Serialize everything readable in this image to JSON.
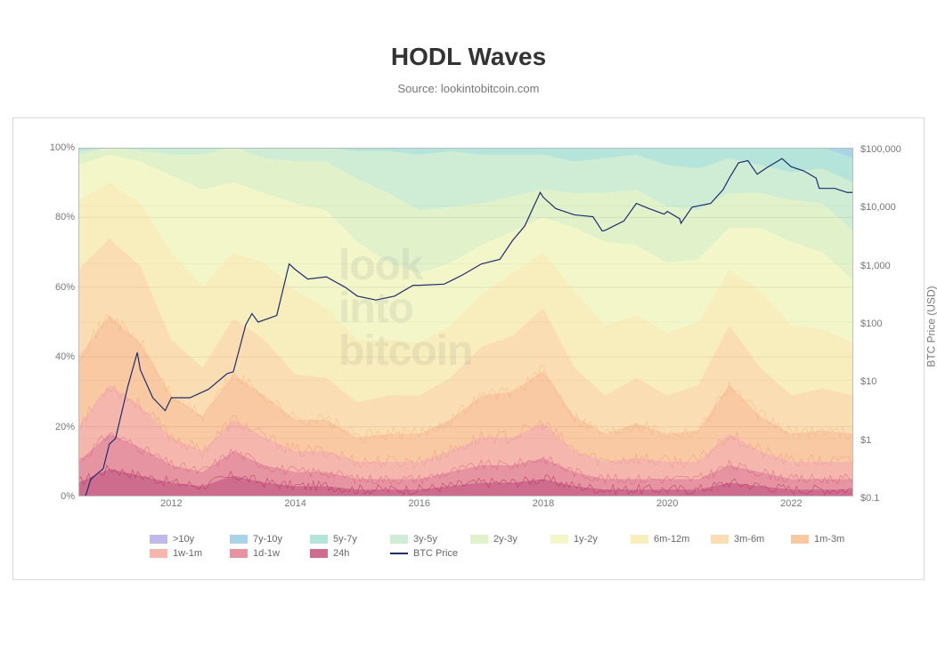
{
  "title": "HODL Waves",
  "subtitle": "Source: lookintobitcoin.com",
  "watermark_lines": [
    "look",
    "into",
    "bitcoin"
  ],
  "watermark_color": "rgba(120,120,120,0.12)",
  "watermark_fontsize": 48,
  "chart": {
    "type": "stacked-area-with-line",
    "background_color": "#ffffff",
    "grid_color": "#d8d8d8",
    "x_axis": {
      "min_year": 2010.5,
      "max_year": 2023.0,
      "ticks": [
        2012,
        2014,
        2016,
        2018,
        2020,
        2022
      ],
      "label_fontsize": 11,
      "label_color": "#777777"
    },
    "y_left": {
      "title": "",
      "min": 0,
      "max": 100,
      "ticks": [
        0,
        20,
        40,
        60,
        80,
        100
      ],
      "suffix": "%",
      "label_fontsize": 11,
      "label_color": "#777777"
    },
    "y_right": {
      "title": "BTC Price (USD)",
      "scale": "log",
      "ticks": [
        0.1,
        1,
        10,
        100,
        1000,
        10000,
        100000
      ],
      "tick_labels": [
        "$0.1",
        "$1",
        "$10",
        "$100",
        "$1,000",
        "$10,000",
        "$100,000"
      ],
      "label_fontsize": 11,
      "label_color": "#777777",
      "title_fontsize": 12
    },
    "samples_x": [
      2010.5,
      2011.0,
      2011.5,
      2012.0,
      2012.5,
      2013.0,
      2013.5,
      2014.0,
      2014.5,
      2015.0,
      2015.5,
      2016.0,
      2016.5,
      2017.0,
      2017.5,
      2018.0,
      2018.5,
      2019.0,
      2019.5,
      2020.0,
      2020.5,
      2021.0,
      2021.5,
      2022.0,
      2022.5,
      2023.0
    ],
    "layers": [
      {
        "id": "24h",
        "label": "24h",
        "color": "#b82e5c",
        "opacity": 0.7,
        "base_pct": [
          4,
          8,
          6,
          4,
          3,
          6,
          4,
          3,
          3,
          2,
          2,
          2,
          3,
          4,
          4,
          5,
          3,
          2,
          2,
          2,
          2,
          4,
          3,
          2,
          2,
          2
        ]
      },
      {
        "id": "1d-1w",
        "label": "1d-1w",
        "color": "#d85a6e",
        "opacity": 0.65,
        "base_pct": [
          6,
          10,
          8,
          5,
          4,
          7,
          5,
          4,
          4,
          3,
          3,
          3,
          4,
          5,
          5,
          6,
          4,
          3,
          3,
          3,
          3,
          5,
          4,
          3,
          3,
          3
        ]
      },
      {
        "id": "1w-1m",
        "label": "1w-1m",
        "color": "#ef8a7a",
        "opacity": 0.62,
        "base_pct": [
          10,
          14,
          12,
          8,
          6,
          9,
          8,
          6,
          6,
          5,
          5,
          5,
          6,
          8,
          8,
          10,
          6,
          5,
          6,
          5,
          5,
          9,
          6,
          5,
          5,
          5
        ]
      },
      {
        "id": "1m-3m",
        "label": "1m-3m",
        "color": "#f4a86a",
        "opacity": 0.62,
        "base_pct": [
          20,
          20,
          18,
          12,
          10,
          13,
          12,
          9,
          9,
          7,
          8,
          8,
          9,
          12,
          13,
          15,
          10,
          8,
          10,
          8,
          9,
          14,
          10,
          8,
          9,
          8
        ]
      },
      {
        "id": "3m-6m",
        "label": "3m-6m",
        "color": "#f6c77f",
        "opacity": 0.6,
        "base_pct": [
          25,
          22,
          22,
          16,
          14,
          16,
          16,
          13,
          12,
          10,
          11,
          11,
          12,
          14,
          16,
          18,
          14,
          11,
          13,
          11,
          13,
          17,
          14,
          11,
          12,
          11
        ]
      },
      {
        "id": "6m-12m",
        "label": "6m-12m",
        "color": "#f3e08e",
        "opacity": 0.58,
        "base_pct": [
          20,
          16,
          18,
          25,
          23,
          19,
          22,
          24,
          20,
          18,
          16,
          15,
          15,
          15,
          18,
          16,
          22,
          20,
          18,
          18,
          18,
          16,
          22,
          20,
          17,
          15
        ]
      },
      {
        "id": "1y-2y",
        "label": "1y-2y",
        "color": "#e8ee9d",
        "opacity": 0.55,
        "base_pct": [
          10,
          8,
          12,
          22,
          28,
          20,
          20,
          25,
          28,
          28,
          22,
          20,
          18,
          14,
          12,
          10,
          18,
          24,
          20,
          20,
          18,
          12,
          18,
          24,
          22,
          18
        ]
      },
      {
        "id": "2y-3y",
        "label": "2y-3y",
        "color": "#c9e8a0",
        "opacity": 0.55,
        "base_pct": [
          3,
          2,
          3,
          6,
          10,
          10,
          10,
          12,
          14,
          18,
          20,
          18,
          16,
          12,
          10,
          8,
          10,
          14,
          16,
          16,
          14,
          10,
          10,
          12,
          14,
          14
        ]
      },
      {
        "id": "3y-5y",
        "label": "3y-5y",
        "color": "#a7dfb0",
        "opacity": 0.55,
        "base_pct": [
          1,
          0,
          1,
          2,
          2,
          0,
          3,
          4,
          4,
          8,
          12,
          16,
          16,
          14,
          12,
          10,
          9,
          10,
          10,
          12,
          12,
          10,
          8,
          8,
          10,
          14
        ]
      },
      {
        "id": "5y-7y",
        "label": "5y-7y",
        "color": "#7fd0c0",
        "opacity": 0.58,
        "base_pct": [
          1,
          0,
          0,
          0,
          0,
          0,
          0,
          0,
          0,
          1,
          1,
          2,
          1,
          2,
          2,
          2,
          4,
          3,
          2,
          5,
          6,
          3,
          5,
          7,
          6,
          7
        ]
      },
      {
        "id": "7y-10y",
        "label": "7y-10y",
        "color": "#6fb8d8",
        "opacity": 0.6,
        "base_pct": [
          0,
          0,
          0,
          0,
          0,
          0,
          0,
          0,
          0,
          0,
          0,
          0,
          0,
          0,
          0,
          0,
          0,
          0,
          0,
          0,
          0,
          0,
          0,
          0,
          0,
          3
        ]
      },
      {
        "id": "gt10y",
        "label": ">10y",
        "color": "#9a8cd8",
        "opacity": 0.62,
        "base_pct": [
          0,
          0,
          0,
          0,
          0,
          0,
          0,
          0,
          0,
          0,
          0,
          0,
          0,
          0,
          0,
          0,
          0,
          0,
          0,
          0,
          0,
          0,
          0,
          0,
          0,
          0
        ]
      }
    ],
    "btc_price": {
      "label": "BTC Price",
      "color": "#1e2d6b",
      "line_width": 1.2,
      "points": [
        [
          2010.55,
          0.06
        ],
        [
          2010.7,
          0.2
        ],
        [
          2010.9,
          0.3
        ],
        [
          2011.0,
          0.8
        ],
        [
          2011.1,
          1.0
        ],
        [
          2011.3,
          8
        ],
        [
          2011.45,
          30
        ],
        [
          2011.5,
          15
        ],
        [
          2011.7,
          5
        ],
        [
          2011.9,
          3
        ],
        [
          2012.0,
          5
        ],
        [
          2012.3,
          5
        ],
        [
          2012.6,
          7
        ],
        [
          2012.9,
          13
        ],
        [
          2013.0,
          14
        ],
        [
          2013.2,
          90
        ],
        [
          2013.3,
          140
        ],
        [
          2013.4,
          100
        ],
        [
          2013.7,
          130
        ],
        [
          2013.9,
          1000
        ],
        [
          2014.0,
          800
        ],
        [
          2014.2,
          550
        ],
        [
          2014.5,
          600
        ],
        [
          2014.8,
          400
        ],
        [
          2015.0,
          280
        ],
        [
          2015.3,
          240
        ],
        [
          2015.6,
          280
        ],
        [
          2015.9,
          430
        ],
        [
          2016.0,
          430
        ],
        [
          2016.4,
          450
        ],
        [
          2016.7,
          650
        ],
        [
          2017.0,
          1000
        ],
        [
          2017.3,
          1200
        ],
        [
          2017.5,
          2500
        ],
        [
          2017.7,
          4500
        ],
        [
          2017.95,
          17000
        ],
        [
          2018.0,
          14000
        ],
        [
          2018.2,
          9000
        ],
        [
          2018.5,
          7000
        ],
        [
          2018.8,
          6500
        ],
        [
          2018.95,
          3700
        ],
        [
          2019.0,
          3800
        ],
        [
          2019.3,
          5500
        ],
        [
          2019.5,
          11000
        ],
        [
          2019.7,
          9000
        ],
        [
          2019.95,
          7200
        ],
        [
          2020.0,
          8000
        ],
        [
          2020.2,
          6000
        ],
        [
          2020.22,
          5000
        ],
        [
          2020.4,
          9500
        ],
        [
          2020.7,
          11000
        ],
        [
          2020.9,
          19000
        ],
        [
          2021.0,
          30000
        ],
        [
          2021.15,
          55000
        ],
        [
          2021.3,
          60000
        ],
        [
          2021.45,
          35000
        ],
        [
          2021.6,
          45000
        ],
        [
          2021.85,
          65000
        ],
        [
          2022.0,
          47000
        ],
        [
          2022.2,
          40000
        ],
        [
          2022.4,
          30000
        ],
        [
          2022.45,
          20000
        ],
        [
          2022.7,
          20000
        ],
        [
          2022.9,
          17000
        ],
        [
          2023.0,
          17000
        ]
      ]
    }
  },
  "legend": {
    "row1": [
      "gt10y",
      "7y-10y",
      "5y-7y",
      "3y-5y",
      "2y-3y",
      "1y-2y",
      "6m-12m",
      "3m-6m",
      "1m-3m"
    ],
    "row2": [
      "1w-1m",
      "1d-1w",
      "24h"
    ],
    "btc_label": "BTC Price",
    "swatch_width": 20,
    "swatch_height": 10,
    "fontsize": 11,
    "text_color": "#666666"
  }
}
